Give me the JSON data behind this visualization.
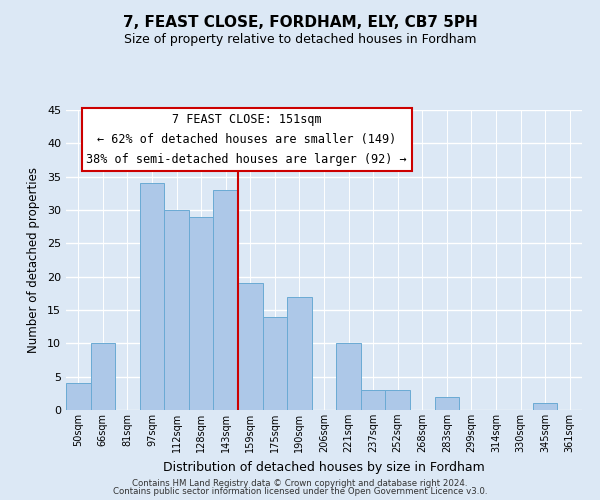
{
  "title": "7, FEAST CLOSE, FORDHAM, ELY, CB7 5PH",
  "subtitle": "Size of property relative to detached houses in Fordham",
  "xlabel": "Distribution of detached houses by size in Fordham",
  "ylabel": "Number of detached properties",
  "bar_labels": [
    "50sqm",
    "66sqm",
    "81sqm",
    "97sqm",
    "112sqm",
    "128sqm",
    "143sqm",
    "159sqm",
    "175sqm",
    "190sqm",
    "206sqm",
    "221sqm",
    "237sqm",
    "252sqm",
    "268sqm",
    "283sqm",
    "299sqm",
    "314sqm",
    "330sqm",
    "345sqm",
    "361sqm"
  ],
  "bar_values": [
    4,
    10,
    0,
    34,
    30,
    29,
    33,
    19,
    14,
    17,
    0,
    10,
    3,
    3,
    0,
    2,
    0,
    0,
    0,
    1,
    0
  ],
  "bar_color": "#adc8e8",
  "bar_edge_color": "#6aaad4",
  "highlight_bar_index": 6,
  "highlight_line_color": "#cc0000",
  "ylim": [
    0,
    45
  ],
  "yticks": [
    0,
    5,
    10,
    15,
    20,
    25,
    30,
    35,
    40,
    45
  ],
  "annotation_title": "7 FEAST CLOSE: 151sqm",
  "annotation_line1": "← 62% of detached houses are smaller (149)",
  "annotation_line2": "38% of semi-detached houses are larger (92) →",
  "annotation_box_color": "#ffffff",
  "annotation_box_edge": "#cc0000",
  "footer_line1": "Contains HM Land Registry data © Crown copyright and database right 2024.",
  "footer_line2": "Contains public sector information licensed under the Open Government Licence v3.0.",
  "background_color": "#dce8f5",
  "plot_background": "#dce8f5",
  "title_fontsize": 11,
  "subtitle_fontsize": 9
}
